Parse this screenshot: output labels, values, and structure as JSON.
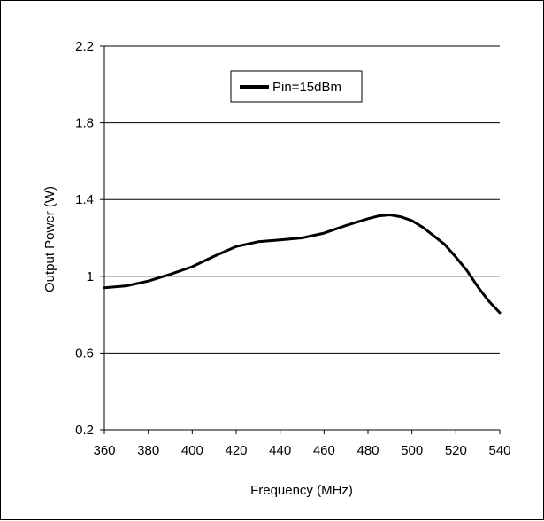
{
  "chart_data": {
    "type": "line",
    "title": "",
    "xlabel": "Frequency (MHz)",
    "ylabel": "Output Power (W)",
    "xlim": [
      360,
      540
    ],
    "ylim": [
      0.2,
      2.2
    ],
    "xticks": [
      360,
      380,
      400,
      420,
      440,
      460,
      480,
      500,
      520,
      540
    ],
    "yticks": [
      0.2,
      0.6,
      1,
      1.4,
      1.8,
      2.2
    ],
    "ytick_labels": [
      "0.2",
      "0.6",
      "1",
      "1.4",
      "1.8",
      "2.2"
    ],
    "grid": "horizontal",
    "legend": "top-center",
    "line_color": "#000000",
    "series": [
      {
        "name": "Pin=15dBm",
        "x": [
          360,
          370,
          380,
          390,
          400,
          410,
          420,
          430,
          440,
          450,
          460,
          470,
          480,
          485,
          490,
          495,
          500,
          505,
          510,
          515,
          520,
          525,
          530,
          535,
          540
        ],
        "values": [
          0.94,
          0.95,
          0.975,
          1.01,
          1.05,
          1.105,
          1.155,
          1.18,
          1.19,
          1.2,
          1.225,
          1.265,
          1.3,
          1.315,
          1.32,
          1.31,
          1.29,
          1.255,
          1.21,
          1.165,
          1.1,
          1.03,
          0.945,
          0.87,
          0.81
        ]
      }
    ]
  }
}
